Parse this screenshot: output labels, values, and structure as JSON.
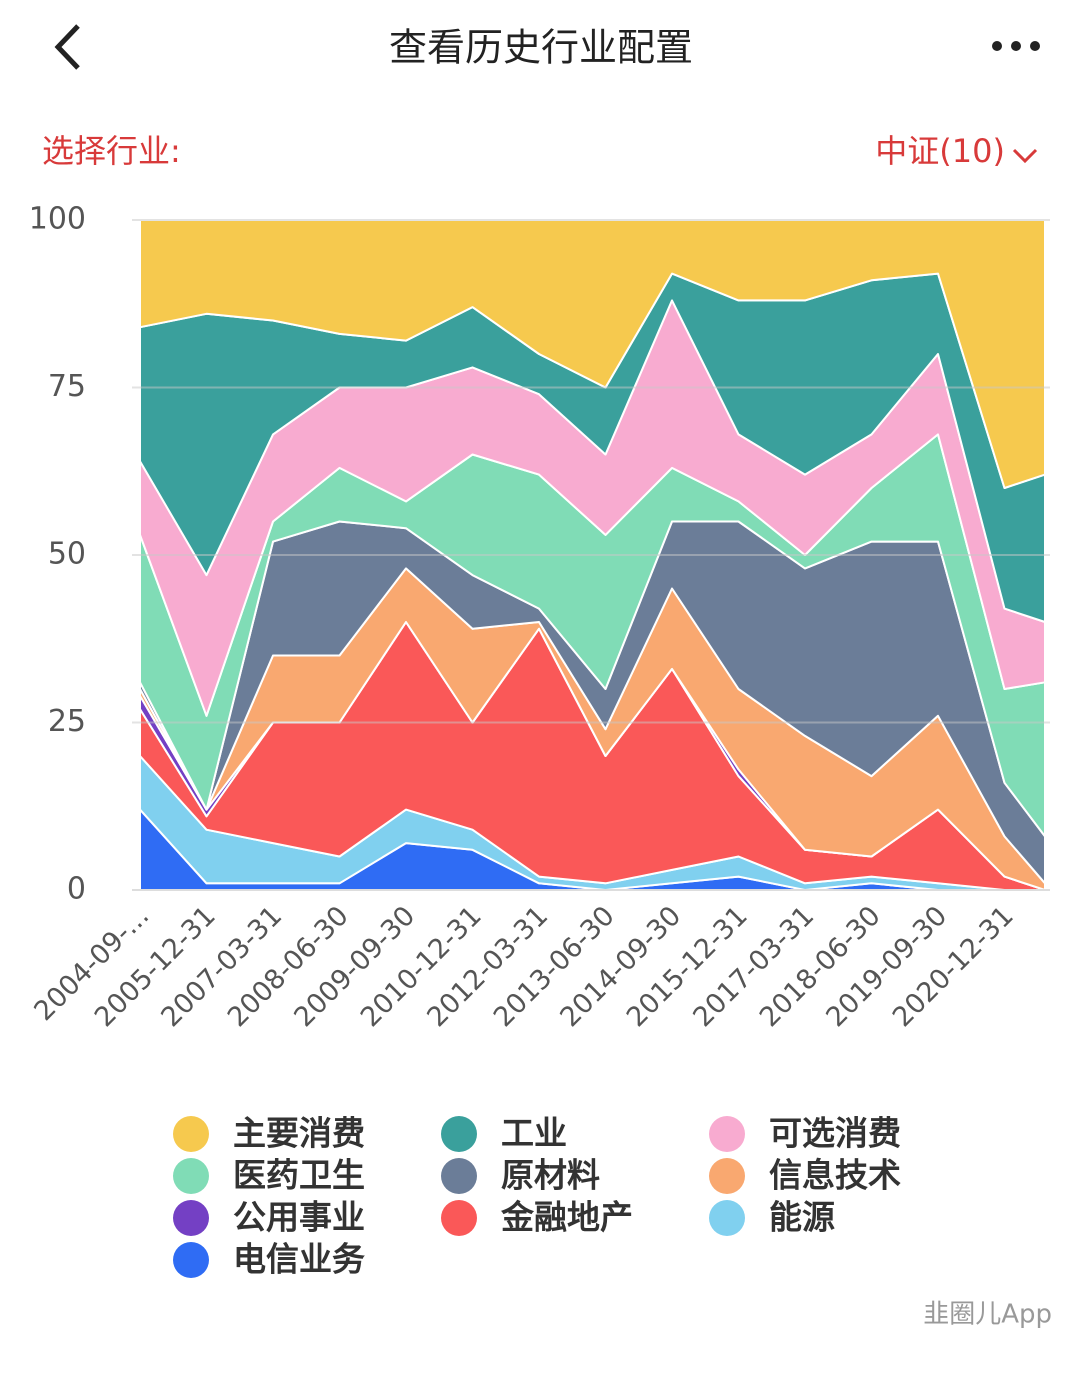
{
  "header": {
    "title": "查看历史行业配置"
  },
  "filter": {
    "label": "选择行业:",
    "value": "中证(10)"
  },
  "watermark": "韭圈儿App",
  "chart_data": {
    "type": "area",
    "stacked": true,
    "categories": [
      "2004-09-...",
      "2005-12-31",
      "2007-03-31",
      "2008-06-30",
      "2009-09-30",
      "2010-12-31",
      "2012-03-31",
      "2013-06-30",
      "2014-09-30",
      "2015-12-31",
      "2017-03-31",
      "2018-06-30",
      "2019-09-30",
      "2020-12-31",
      null
    ],
    "series": [
      {
        "name": "主要消费",
        "color": "#f6c94e",
        "values": [
          16,
          14,
          15,
          17,
          18,
          13,
          20,
          25,
          8,
          12,
          12,
          9,
          8,
          40,
          38
        ]
      },
      {
        "name": "工业",
        "color": "#3aa09c",
        "values": [
          20,
          39,
          17,
          8,
          7,
          9,
          6,
          10,
          4,
          20,
          26,
          23,
          12,
          18,
          22
        ]
      },
      {
        "name": "可选消费",
        "color": "#f8abd0",
        "values": [
          11,
          21,
          13,
          12,
          17,
          13,
          12,
          12,
          25,
          10,
          12,
          8,
          12,
          12,
          9
        ]
      },
      {
        "name": "医药卫生",
        "color": "#80dcb6",
        "values": [
          22,
          14,
          3,
          8,
          4,
          18,
          20,
          23,
          8,
          3,
          2,
          8,
          16,
          14,
          23
        ]
      },
      {
        "name": "原材料",
        "color": "#6b7d98",
        "values": [
          1,
          0,
          17,
          20,
          6,
          8,
          2,
          6,
          10,
          25,
          25,
          35,
          26,
          8,
          7
        ]
      },
      {
        "name": "信息技术",
        "color": "#f9a870",
        "values": [
          1,
          0,
          10,
          10,
          8,
          14,
          1,
          4,
          12,
          12,
          17,
          12,
          14,
          6,
          1
        ]
      },
      {
        "name": "公用事业",
        "color": "#7440c4",
        "values": [
          2,
          1,
          0,
          0,
          0,
          0,
          0,
          0,
          0,
          1,
          0,
          0,
          0,
          0,
          0
        ]
      },
      {
        "name": "金融地产",
        "color": "#fa5858",
        "values": [
          7,
          2,
          18,
          20,
          28,
          16,
          37,
          19,
          30,
          12,
          5,
          3,
          11,
          2,
          0
        ]
      },
      {
        "name": "能源",
        "color": "#80d0ef",
        "values": [
          8,
          8,
          6,
          4,
          5,
          3,
          1,
          1,
          2,
          3,
          1,
          1,
          1,
          0,
          0
        ]
      },
      {
        "name": "电信业务",
        "color": "#2f6cf4",
        "values": [
          12,
          1,
          1,
          1,
          7,
          6,
          1,
          0,
          1,
          2,
          0,
          1,
          0,
          0,
          0
        ]
      }
    ],
    "ylim": [
      0,
      100
    ],
    "yticks": [
      0,
      25,
      50,
      75,
      100
    ],
    "grid": true
  }
}
